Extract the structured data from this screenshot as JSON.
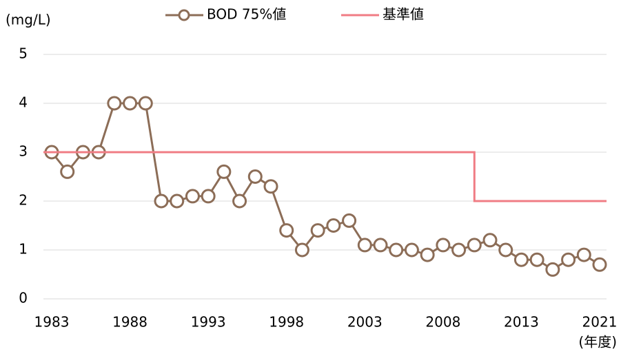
{
  "chart_data": {
    "type": "line",
    "y_label": "(mg/L)",
    "x_label": "(年度)",
    "categories": [
      "1983",
      null,
      null,
      null,
      null,
      "1988",
      null,
      null,
      null,
      null,
      "1993",
      null,
      null,
      null,
      null,
      "1998",
      null,
      null,
      null,
      null,
      "2003",
      null,
      null,
      null,
      null,
      "2008",
      null,
      null,
      null,
      null,
      "2013",
      null,
      null,
      null,
      null,
      "2021"
    ],
    "series": [
      {
        "name": "BOD 75%値",
        "color": "#8c6d57",
        "marker": "circle",
        "values": [
          3,
          2.6,
          3,
          3,
          4,
          4,
          4,
          2,
          2,
          2.1,
          2.1,
          2.6,
          2,
          2.5,
          2.3,
          1.4,
          1.0,
          1.4,
          1.5,
          1.6,
          1.1,
          1.1,
          1.0,
          1.0,
          0.9,
          1.1,
          1.0,
          1.1,
          1.2,
          1.0,
          0.8,
          0.8,
          0.6,
          0.8,
          0.9,
          0.7
        ]
      },
      {
        "name": "基準値",
        "color": "#f07c84",
        "step": true,
        "values": [
          3,
          3,
          3,
          3,
          3,
          3,
          3,
          3,
          3,
          3,
          3,
          3,
          3,
          3,
          3,
          3,
          3,
          3,
          3,
          3,
          3,
          3,
          3,
          3,
          3,
          3,
          3,
          2,
          2,
          2,
          2,
          2,
          2,
          2,
          2,
          2
        ]
      }
    ],
    "ylim": [
      0,
      5
    ],
    "yticks": [
      0,
      1,
      2,
      3,
      4,
      5
    ],
    "grid": true,
    "legend": "top"
  }
}
